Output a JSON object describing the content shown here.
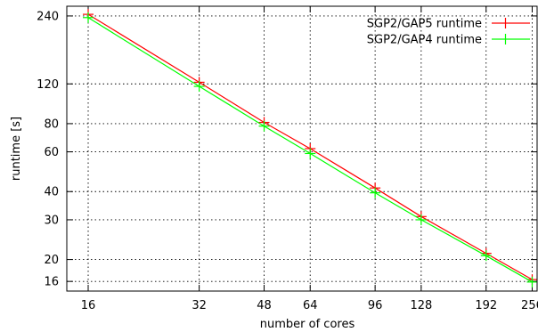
{
  "chart_data": {
    "type": "line",
    "title": "",
    "xlabel": "number of cores",
    "ylabel": "runtime [s]",
    "x_scale": "log",
    "y_scale": "log",
    "xlim": [
      14,
      264
    ],
    "ylim": [
      14.5,
      265
    ],
    "x_ticks": [
      16,
      32,
      48,
      64,
      96,
      128,
      192,
      256
    ],
    "y_ticks": [
      16,
      20,
      30,
      40,
      60,
      80,
      120,
      240
    ],
    "grid": true,
    "legend_position": "top-right",
    "x": [
      16,
      32,
      48,
      64,
      96,
      128,
      192,
      256
    ],
    "series": [
      {
        "name": "SGP2/GAP5 runtime",
        "color": "#ff0000",
        "values": [
          244,
          122,
          81,
          62,
          41.5,
          31,
          21.3,
          16.3
        ]
      },
      {
        "name": "SGP2/GAP4 runtime",
        "color": "#00ff00",
        "values": [
          236,
          117,
          78,
          59,
          39.5,
          30,
          20.8,
          15.9
        ]
      }
    ]
  }
}
